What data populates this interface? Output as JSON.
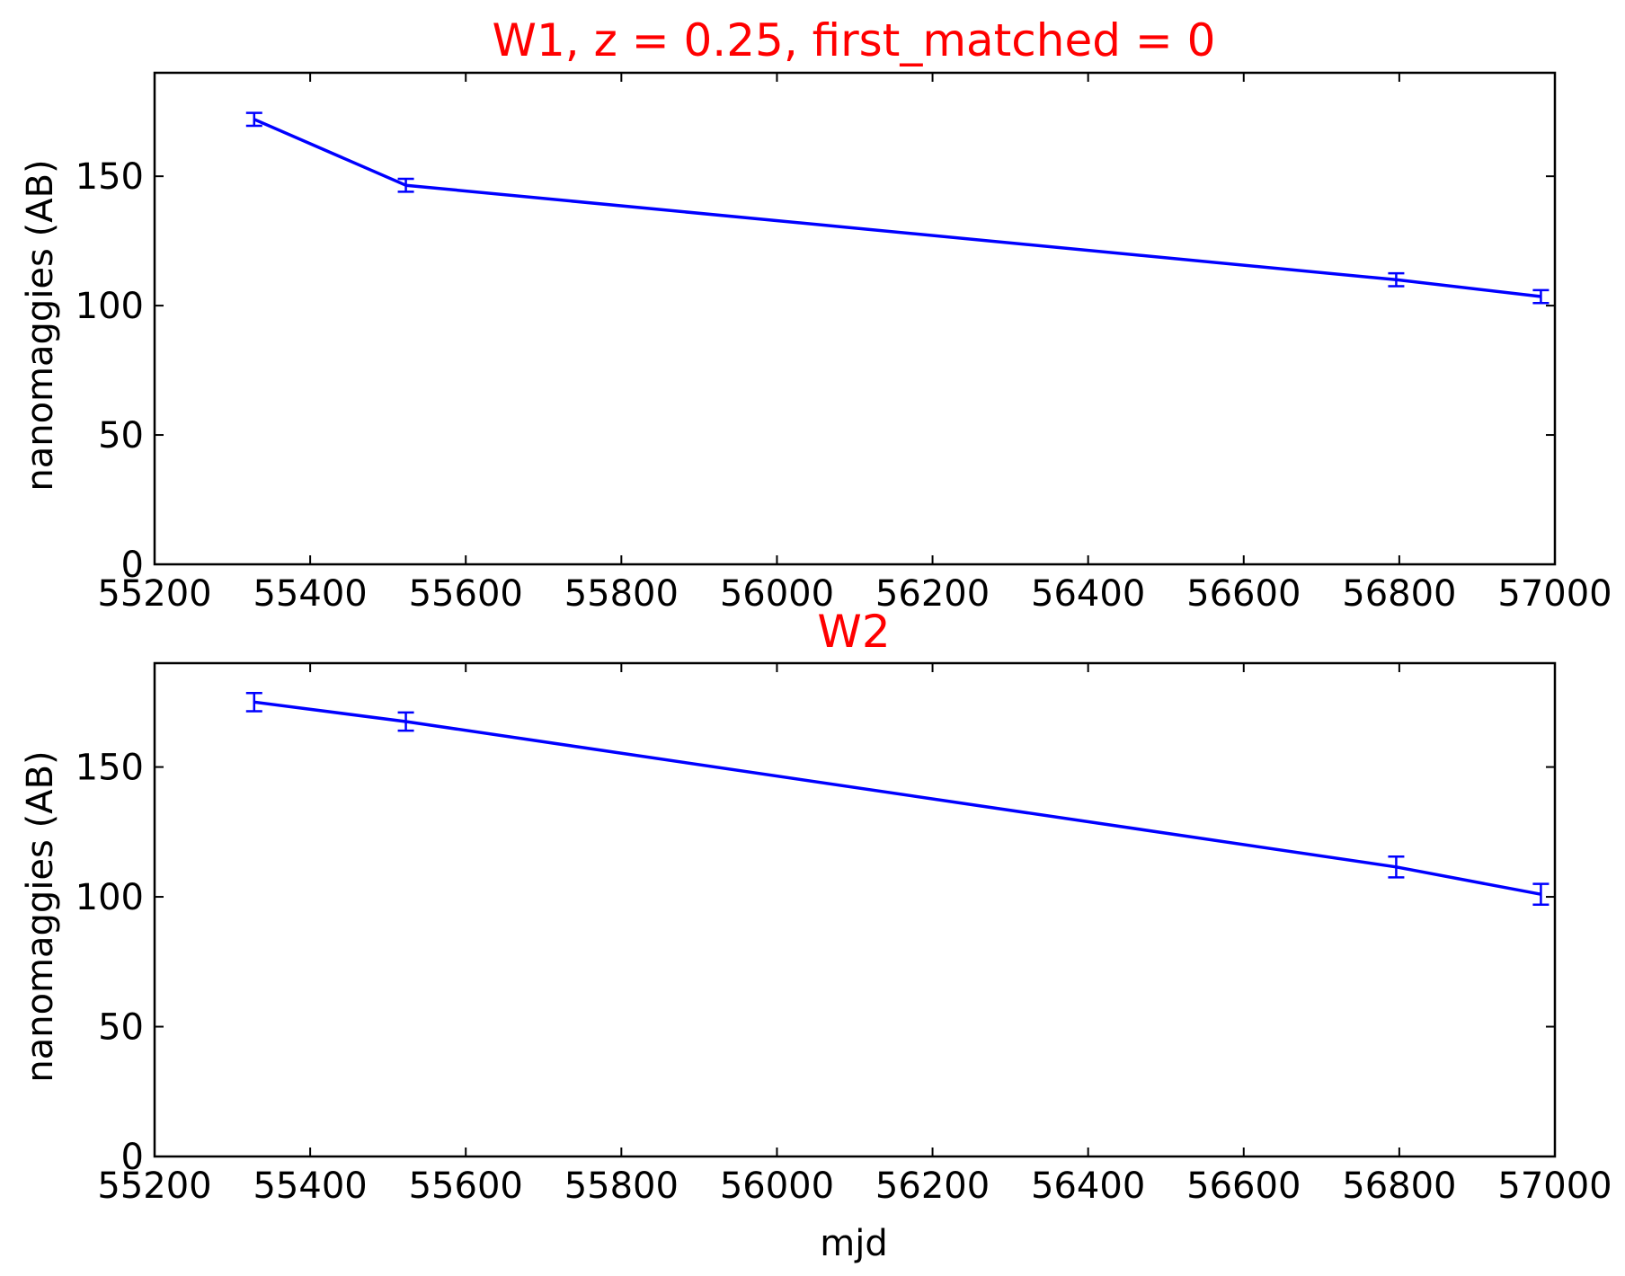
{
  "chart_data": [
    {
      "type": "line",
      "title": "W1, z = 0.25, first_matched = 0",
      "xlabel": "",
      "ylabel": "nanomaggies (AB)",
      "xlim": [
        55200,
        57000
      ],
      "ylim": [
        0,
        190
      ],
      "xticks": [
        55200,
        55400,
        55600,
        55800,
        56000,
        56200,
        56400,
        56600,
        56800,
        57000
      ],
      "yticks": [
        0,
        50,
        100,
        150
      ],
      "grid": false,
      "series": [
        {
          "x": [
            55328,
            55523,
            56796,
            56982
          ],
          "y": [
            172,
            146.5,
            110,
            103.5
          ],
          "yerr": [
            2.5,
            2.5,
            2.5,
            2.5
          ]
        }
      ]
    },
    {
      "type": "line",
      "title": "W2",
      "xlabel": "mjd",
      "ylabel": "nanomaggies (AB)",
      "xlim": [
        55200,
        57000
      ],
      "ylim": [
        0,
        190
      ],
      "xticks": [
        55200,
        55400,
        55600,
        55800,
        56000,
        56200,
        56400,
        56600,
        56800,
        57000
      ],
      "yticks": [
        0,
        50,
        100,
        150
      ],
      "grid": false,
      "series": [
        {
          "x": [
            55328,
            55523,
            56796,
            56982
          ],
          "y": [
            175,
            167.5,
            111.5,
            101
          ],
          "yerr": [
            3.5,
            3.5,
            4,
            4
          ]
        }
      ]
    }
  ],
  "colors": {
    "title": "#ff0000",
    "series": "#0000ff",
    "axes": "#000000"
  }
}
